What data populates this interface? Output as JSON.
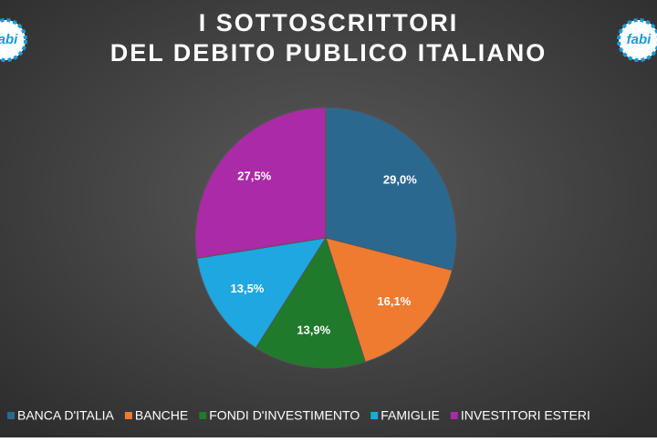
{
  "logo": "fabi",
  "chart_data": {
    "type": "pie",
    "title": [
      "I SOTTOSCRITTORI",
      "DEL DEBITO PUBLICO ITALIANO"
    ],
    "categories": [
      "BANCA D'ITALIA",
      "BANCHE",
      "FONDI D'INVESTIMENTO",
      "FAMIGLIE",
      "INVESTITORI ESTERI"
    ],
    "values": [
      29.0,
      16.1,
      13.9,
      13.5,
      27.5
    ],
    "value_labels": [
      "29,0%",
      "16,1%",
      "13,9%",
      "13,5%",
      "27,5%"
    ],
    "colors": [
      "#2b6890",
      "#ee7b30",
      "#1f7a2b",
      "#1ea7e0",
      "#ab2aa6"
    ],
    "legend": "bottom"
  }
}
